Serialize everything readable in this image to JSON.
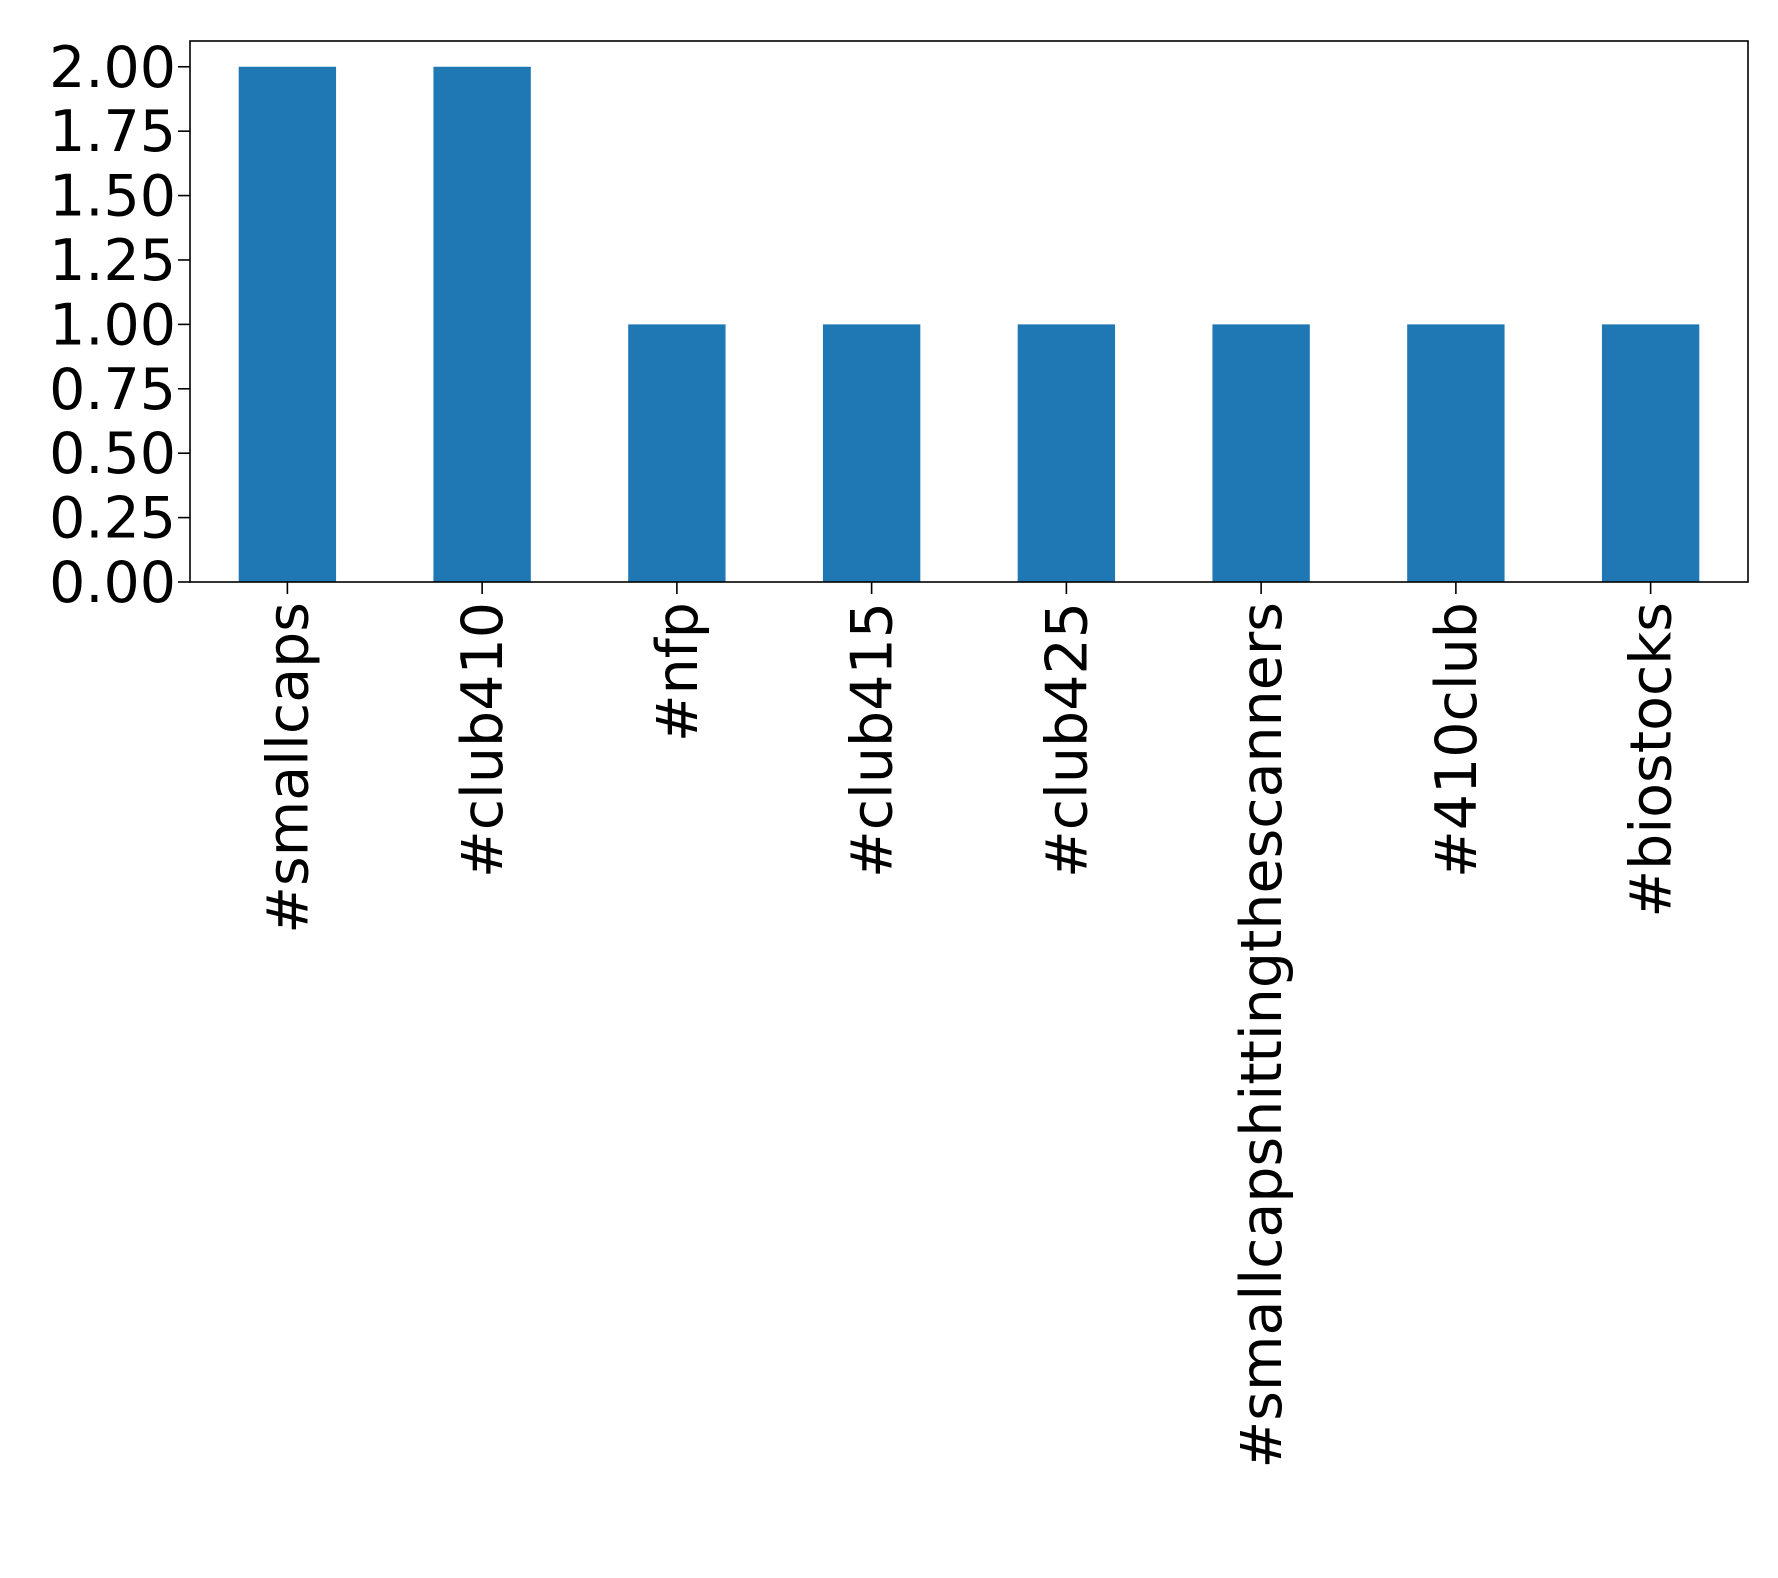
{
  "chart_data": {
    "type": "bar",
    "categories": [
      "#smallcaps",
      "#club410",
      "#nfp",
      "#club415",
      "#club425",
      "#smallcapshittingthescanners",
      "#410club",
      "#biostocks"
    ],
    "values": [
      2,
      2,
      1,
      1,
      1,
      1,
      1,
      1
    ],
    "ylim": [
      0,
      2.1
    ],
    "yticks": [
      "0.00",
      "0.25",
      "0.50",
      "0.75",
      "1.00",
      "1.25",
      "1.50",
      "1.75",
      "2.00"
    ],
    "ytick_values": [
      0,
      0.25,
      0.5,
      0.75,
      1.0,
      1.25,
      1.5,
      1.75,
      2.0
    ],
    "title": "",
    "xlabel": "",
    "ylabel": "",
    "grid": false,
    "legend": "none",
    "bar_color": "#1f77b4",
    "x_label_rotation": "vertical"
  }
}
